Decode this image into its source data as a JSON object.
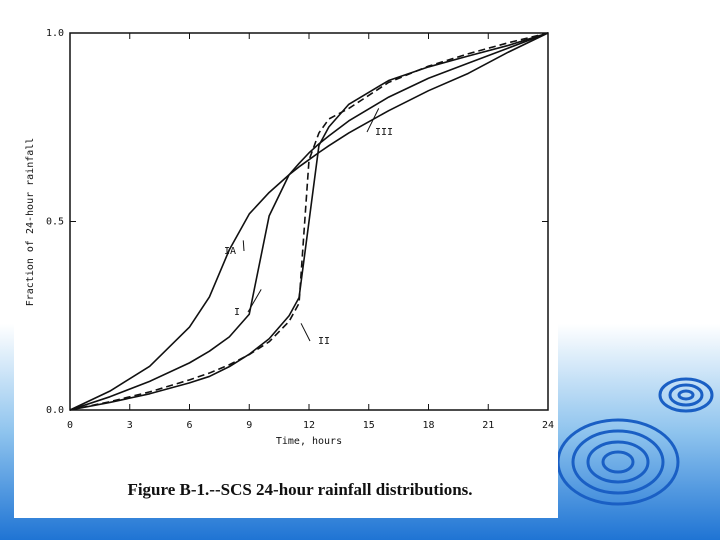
{
  "chart_data": {
    "type": "line",
    "title": "Figure B-1.--SCS 24-hour rainfall distributions.",
    "xlabel": "Time, hours",
    "ylabel": "Fraction of 24-hour rainfall",
    "x": [
      0,
      2,
      4,
      6,
      7,
      8,
      9,
      10,
      11,
      11.5,
      12,
      12.5,
      13,
      14,
      16,
      18,
      20,
      22,
      24
    ],
    "series": [
      {
        "name": "IA",
        "color": "#111111",
        "dashed": false,
        "values": [
          0,
          0.05,
          0.116,
          0.22,
          0.3,
          0.425,
          0.52,
          0.577,
          0.624,
          0.645,
          0.664,
          0.683,
          0.701,
          0.735,
          0.794,
          0.847,
          0.893,
          0.949,
          1
        ]
      },
      {
        "name": "I",
        "color": "#111111",
        "dashed": false,
        "values": [
          0,
          0.035,
          0.076,
          0.125,
          0.156,
          0.194,
          0.254,
          0.515,
          0.624,
          0.654,
          0.682,
          0.706,
          0.727,
          0.767,
          0.83,
          0.88,
          0.92,
          0.96,
          1
        ]
      },
      {
        "name": "II",
        "color": "#111111",
        "dashed": true,
        "values": [
          0,
          0.022,
          0.048,
          0.08,
          0.098,
          0.12,
          0.147,
          0.181,
          0.235,
          0.283,
          0.663,
          0.735,
          0.772,
          0.8,
          0.869,
          0.912,
          0.945,
          0.974,
          1
        ]
      },
      {
        "name": "III",
        "color": "#111111",
        "dashed": false,
        "values": [
          0,
          0.02,
          0.043,
          0.072,
          0.089,
          0.115,
          0.148,
          0.189,
          0.25,
          0.298,
          0.5,
          0.702,
          0.751,
          0.811,
          0.874,
          0.91,
          0.939,
          0.967,
          1
        ]
      }
    ],
    "xlim": [
      0,
      24
    ],
    "xticks": [
      0,
      3,
      6,
      9,
      12,
      15,
      18,
      21,
      24
    ],
    "ylim": [
      0,
      1
    ],
    "yticks": [
      {
        "value": 0,
        "label": "0.0"
      },
      {
        "value": 0.5,
        "label": "0.5"
      },
      {
        "value": 1,
        "label": "1.0"
      }
    ],
    "grid": false
  }
}
